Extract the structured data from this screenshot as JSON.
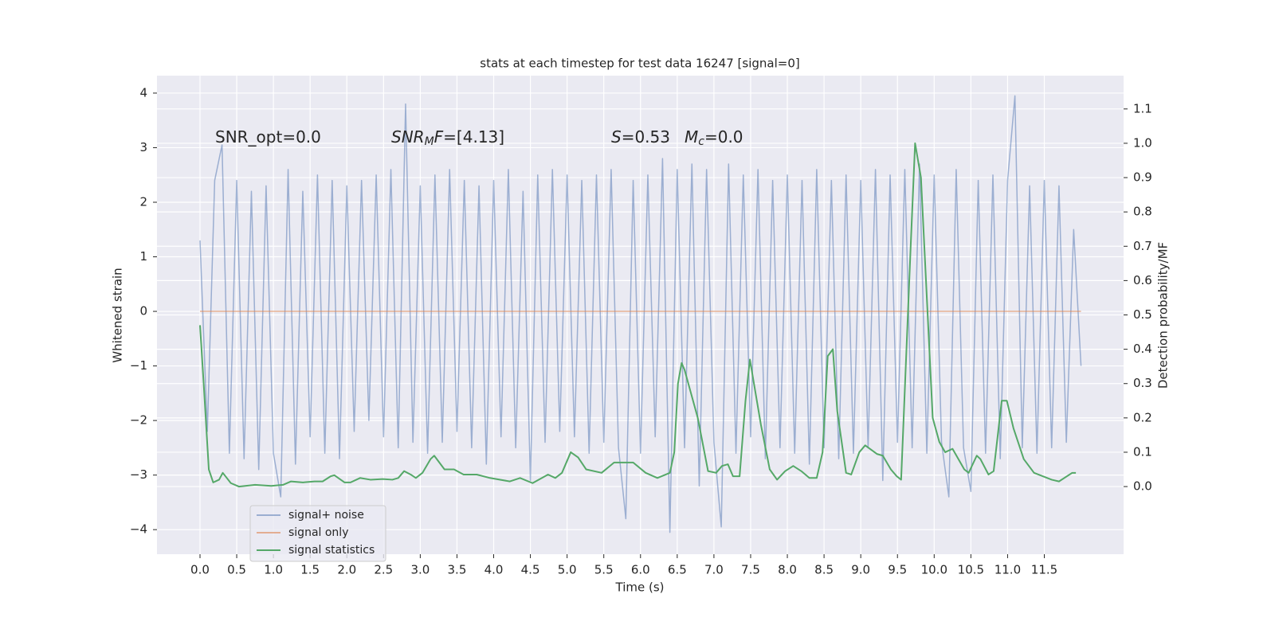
{
  "chart_data": {
    "type": "line",
    "title": "stats at each timestep for test data 16247 [signal=0]",
    "xlabel": "Time (s)",
    "ylabel": "Whitened strain",
    "y2label": "Detection probability/MF",
    "annotations": [
      [
        {
          "text": "SNR_opt=0.0",
          "italic": false,
          "sub": false
        }
      ],
      [
        {
          "text": "SNR",
          "italic": true,
          "sub": false
        },
        {
          "text": "M",
          "italic": true,
          "sub": true
        },
        {
          "text": "F",
          "italic": true,
          "sub": false
        },
        {
          "text": "=[4.13]",
          "italic": false,
          "sub": false
        }
      ],
      [
        {
          "text": "S",
          "italic": true,
          "sub": false
        },
        {
          "text": "=0.53",
          "italic": false,
          "sub": false
        }
      ],
      [
        {
          "text": "M",
          "italic": true,
          "sub": false
        },
        {
          "text": "c",
          "italic": true,
          "sub": true
        },
        {
          "text": "=0.0",
          "italic": false,
          "sub": false
        }
      ]
    ],
    "xlim": [
      -0.586,
      12.58
    ],
    "ylim": [
      -4.45,
      4.32
    ],
    "y2lim": [
      -0.197,
      1.197
    ],
    "xticks": [
      {
        "value": 0,
        "label": "0.0"
      },
      0.5,
      {
        "value": 1,
        "label": "1.0"
      },
      1.5,
      {
        "value": 2,
        "label": "2.0"
      },
      2.5,
      {
        "value": 3,
        "label": "3.0"
      },
      3.5,
      {
        "value": 4,
        "label": "4.0"
      },
      4.5,
      {
        "value": 5,
        "label": "5.0"
      },
      5.5,
      {
        "value": 6,
        "label": "6.0"
      },
      6.5,
      {
        "value": 7,
        "label": "7.0"
      },
      7.5,
      {
        "value": 8,
        "label": "8.0"
      },
      8.5,
      {
        "value": 9,
        "label": "9.0"
      },
      9.5,
      {
        "value": 10,
        "label": "10.0"
      },
      10.5,
      {
        "value": 11,
        "label": "11.0"
      },
      11.5
    ],
    "yticks": [
      {
        "value": -4,
        "label": "−4"
      },
      {
        "value": -3,
        "label": "−3"
      },
      {
        "value": -2,
        "label": "−2"
      },
      {
        "value": -1,
        "label": "−1"
      },
      0,
      1,
      2,
      3,
      4
    ],
    "y2ticks": [
      {
        "value": 0,
        "label": "0.0"
      },
      0.1,
      0.2,
      0.3,
      0.4,
      0.5,
      0.6,
      0.7,
      0.8,
      0.9,
      {
        "value": 1,
        "label": "1.0"
      },
      1.1
    ],
    "grid": true,
    "legend": "lower left",
    "series": [
      {
        "name": "signal+ noise",
        "color": "#4c72b0",
        "opacity": 0.5,
        "x": [
          0,
          0.1,
          0.2,
          0.3,
          0.4,
          0.5,
          0.6,
          0.7,
          0.8,
          0.9,
          1,
          1.1,
          1.2,
          1.3,
          1.4,
          1.5,
          1.6,
          1.7,
          1.8,
          1.9,
          2,
          2.1,
          2.2,
          2.3,
          2.4,
          2.5,
          2.6,
          2.7,
          2.8,
          2.9,
          3,
          3.1,
          3.2,
          3.3,
          3.4,
          3.5,
          3.6,
          3.7,
          3.8,
          3.9,
          4,
          4.1,
          4.2,
          4.3,
          4.4,
          4.5,
          4.6,
          4.7,
          4.8,
          4.9,
          5,
          5.1,
          5.2,
          5.3,
          5.4,
          5.5,
          5.6,
          5.7,
          5.8,
          5.9,
          6,
          6.1,
          6.2,
          6.3,
          6.4,
          6.5,
          6.6,
          6.7,
          6.8,
          6.9,
          7,
          7.1,
          7.2,
          7.3,
          7.4,
          7.5,
          7.6,
          7.7,
          7.8,
          7.9,
          8,
          8.1,
          8.2,
          8.3,
          8.4,
          8.5,
          8.6,
          8.7,
          8.8,
          8.9,
          9,
          9.1,
          9.2,
          9.3,
          9.4,
          9.5,
          9.6,
          9.7,
          9.8,
          9.9,
          10,
          10.1,
          10.2,
          10.3,
          10.4,
          10.5,
          10.6,
          10.7,
          10.8,
          10.9,
          11,
          11.1,
          11.2,
          11.3,
          11.4,
          11.5,
          11.6,
          11.7,
          11.8,
          11.9,
          12
        ],
        "values": [
          1.3,
          -2.2,
          2.4,
          3.05,
          -2.6,
          2.4,
          -2.7,
          2.2,
          -2.9,
          2.3,
          -2.6,
          -3.4,
          2.6,
          -2.8,
          2.2,
          -2.3,
          2.5,
          -2.6,
          2.4,
          -2.7,
          2.3,
          -2.2,
          2.4,
          -2.0,
          2.5,
          -2.3,
          2.6,
          -2.5,
          3.8,
          -2.4,
          2.3,
          -2.6,
          2.5,
          -2.4,
          2.6,
          -2.2,
          2.4,
          -2.5,
          2.3,
          -2.8,
          2.4,
          -2.3,
          2.6,
          -2.5,
          2.2,
          -3.1,
          2.5,
          -2.4,
          2.6,
          -2.2,
          2.5,
          -2.3,
          2.4,
          -2.6,
          2.5,
          -2.4,
          2.6,
          -2.5,
          -3.8,
          2.4,
          -2.6,
          2.5,
          -2.3,
          2.8,
          -4.05,
          2.6,
          -2.5,
          2.7,
          -3.2,
          2.6,
          -2.4,
          -3.95,
          2.7,
          -2.6,
          2.5,
          -2.3,
          2.6,
          -2.7,
          2.4,
          -2.5,
          2.5,
          -2.6,
          2.4,
          -2.8,
          2.6,
          -2.5,
          2.4,
          -2.7,
          2.5,
          -2.6,
          2.4,
          -2.5,
          2.6,
          -3.1,
          2.5,
          -2.4,
          2.6,
          -2.5,
          2.7,
          -2.6,
          2.5,
          -2.4,
          -3.4,
          2.6,
          -2.5,
          -3.3,
          2.4,
          -2.6,
          2.5,
          -2.7,
          2.4,
          3.95,
          -2.5,
          2.3,
          -2.6,
          2.4,
          -2.5,
          2.3,
          -2.4,
          1.5,
          -1.0
        ]
      },
      {
        "name": "signal only",
        "color": "#dd8452",
        "opacity": 0.6,
        "x": [
          0,
          12
        ],
        "values": [
          0,
          0
        ]
      },
      {
        "name": "signal statistics",
        "color": "#55a868",
        "opacity": 1,
        "axis": "y2",
        "x": [
          0,
          0.05,
          0.12,
          0.18,
          0.26,
          0.31,
          0.42,
          0.53,
          0.75,
          0.97,
          1.13,
          1.24,
          1.4,
          1.56,
          1.67,
          1.78,
          1.83,
          1.97,
          2.05,
          2.18,
          2.32,
          2.49,
          2.62,
          2.7,
          2.78,
          2.87,
          2.94,
          3.03,
          3.14,
          3.19,
          3.33,
          3.46,
          3.59,
          3.77,
          3.95,
          4.22,
          4.36,
          4.53,
          4.74,
          4.84,
          4.93,
          5.05,
          5.15,
          5.26,
          5.47,
          5.64,
          5.9,
          6.07,
          6.23,
          6.4,
          6.46,
          6.51,
          6.56,
          6.6,
          6.78,
          6.92,
          7.03,
          7.11,
          7.19,
          7.26,
          7.35,
          7.43,
          7.49,
          7.64,
          7.76,
          7.86,
          7.97,
          8.08,
          8.19,
          8.3,
          8.4,
          8.48,
          8.55,
          8.62,
          8.68,
          8.8,
          8.87,
          8.98,
          9.06,
          9.22,
          9.3,
          9.41,
          9.49,
          9.55,
          9.68,
          9.74,
          9.82,
          9.98,
          10.07,
          10.15,
          10.25,
          10.41,
          10.47,
          10.58,
          10.63,
          10.74,
          10.81,
          10.92,
          10.99,
          11.08,
          11.22,
          11.36,
          11.6,
          11.7,
          11.88,
          11.93
        ],
        "values": [
          0.47,
          0.3,
          0.05,
          0.012,
          0.02,
          0.04,
          0.01,
          0,
          0.005,
          0.002,
          0.005,
          0.015,
          0.012,
          0.015,
          0.015,
          0.03,
          0.033,
          0.012,
          0.012,
          0.025,
          0.02,
          0.022,
          0.02,
          0.025,
          0.045,
          0.035,
          0.025,
          0.04,
          0.08,
          0.09,
          0.05,
          0.05,
          0.035,
          0.035,
          0.025,
          0.015,
          0.025,
          0.01,
          0.035,
          0.025,
          0.04,
          0.1,
          0.085,
          0.05,
          0.04,
          0.07,
          0.07,
          0.04,
          0.025,
          0.04,
          0.1,
          0.3,
          0.36,
          0.34,
          0.2,
          0.045,
          0.04,
          0.06,
          0.065,
          0.03,
          0.03,
          0.25,
          0.37,
          0.18,
          0.05,
          0.02,
          0.045,
          0.06,
          0.045,
          0.025,
          0.025,
          0.1,
          0.38,
          0.4,
          0.22,
          0.04,
          0.035,
          0.1,
          0.12,
          0.095,
          0.09,
          0.05,
          0.03,
          0.02,
          0.7,
          1.0,
          0.9,
          0.2,
          0.13,
          0.1,
          0.11,
          0.05,
          0.04,
          0.09,
          0.08,
          0.035,
          0.045,
          0.25,
          0.25,
          0.17,
          0.08,
          0.04,
          0.02,
          0.015,
          0.04,
          0.04
        ]
      }
    ]
  }
}
